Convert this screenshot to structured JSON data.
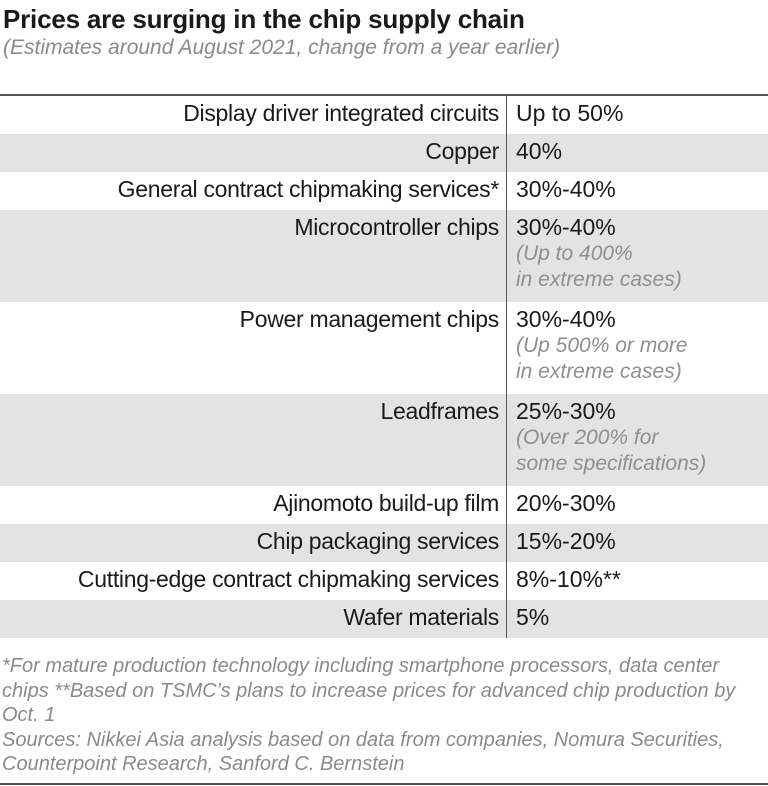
{
  "chart_data": {
    "type": "table",
    "title": "Prices are surging in the chip supply chain",
    "subtitle": "(Estimates around August 2021, change from a year earlier)",
    "rows": [
      {
        "item": "Display driver integrated circuits",
        "change": "Up to 50%",
        "note": ""
      },
      {
        "item": "Copper",
        "change": "40%",
        "note": ""
      },
      {
        "item": "General contract chipmaking services*",
        "change": "30%-40%",
        "note": ""
      },
      {
        "item": "Microcontroller chips",
        "change": "30%-40%",
        "note": [
          "(Up to 400%",
          "in extreme cases)"
        ]
      },
      {
        "item": "Power management chips",
        "change": "30%-40%",
        "note": [
          "(Up 500% or more",
          "in extreme cases)"
        ]
      },
      {
        "item": "Leadframes",
        "change": "25%-30%",
        "note": [
          "(Over 200% for",
          "some specifications)"
        ]
      },
      {
        "item": "Ajinomoto build-up film",
        "change": "20%-30%",
        "note": ""
      },
      {
        "item": "Chip packaging services",
        "change": "15%-20%",
        "note": ""
      },
      {
        "item": "Cutting-edge contract chipmaking services",
        "change": "8%-10%**",
        "note": ""
      },
      {
        "item": "Wafer materials",
        "change": "5%",
        "note": ""
      }
    ],
    "footnotes": "*For mature production technology including smartphone processors, data center chips  **Based on TSMC’s plans to increase prices for advanced chip production by Oct. 1",
    "sources": "Sources: Nikkei Asia analysis based on data from companies, Nomura Securities, Counterpoint Research, Sanford C. Bernstein",
    "colors": {
      "stripe": "#e3e3e3",
      "note_text": "#8f8f8f",
      "text": "#1a1a1a"
    }
  }
}
